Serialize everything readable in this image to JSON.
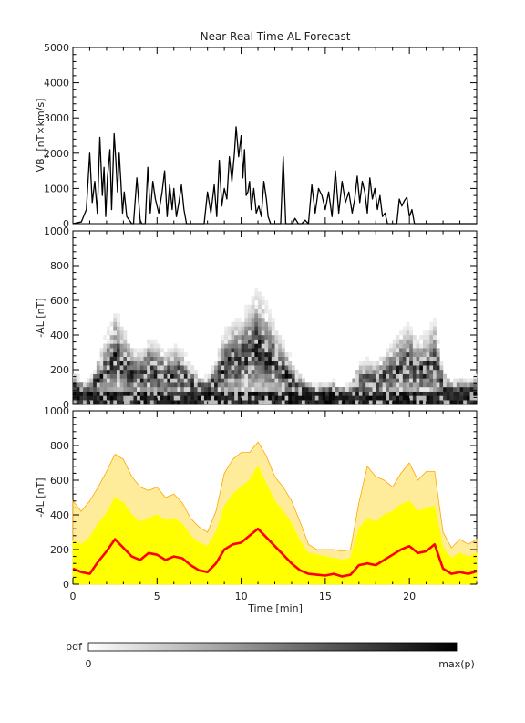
{
  "title": "Near Real Time AL Forecast",
  "x_axis": {
    "label": "Time [min]",
    "range": [
      0,
      24
    ],
    "major_ticks": [
      0,
      5,
      10,
      15,
      20
    ],
    "minor_step": 1
  },
  "colorbar": {
    "label": "pdf",
    "min_label": "0",
    "max_label": "max(p)"
  },
  "chart_data": [
    {
      "type": "line",
      "name": "vbs-panel",
      "ylabel": "VBs [nT×km/s]",
      "ylabel_main": "VB",
      "ylabel_sub": "s",
      "ylabel_rest": " [nT×km/s]",
      "xlim": [
        0,
        24
      ],
      "ylim": [
        0,
        5000
      ],
      "yticks": [
        0,
        1000,
        2000,
        3000,
        4000,
        5000
      ],
      "series": [
        {
          "x": [
            0,
            0.5,
            0.8,
            1.0,
            1.15,
            1.3,
            1.45,
            1.6,
            1.75,
            1.85,
            1.95,
            2.05,
            2.2,
            2.3,
            2.45,
            2.55,
            2.65,
            2.75,
            2.85,
            2.95,
            3.05,
            3.2,
            3.35,
            3.5,
            3.6,
            3.8,
            4.0,
            4.1,
            4.3,
            4.45,
            4.6,
            4.75,
            4.9,
            5.1,
            5.3,
            5.45,
            5.6,
            5.75,
            5.9,
            6.0,
            6.15,
            6.3,
            6.45,
            6.6,
            6.75,
            6.9,
            7.05,
            7.2,
            7.4,
            7.6,
            7.8,
            8.0,
            8.2,
            8.4,
            8.55,
            8.7,
            8.85,
            9.0,
            9.15,
            9.3,
            9.45,
            9.6,
            9.7,
            9.85,
            10.0,
            10.1,
            10.2,
            10.3,
            10.4,
            10.5,
            10.6,
            10.75,
            10.9,
            11.05,
            11.2,
            11.35,
            11.5,
            11.6,
            11.75,
            11.9,
            12.05,
            12.2,
            12.35,
            12.5,
            12.65,
            12.8,
            12.9,
            13.05,
            13.2,
            13.4,
            13.6,
            13.8,
            14.0,
            14.2,
            14.4,
            14.6,
            14.8,
            15.0,
            15.2,
            15.4,
            15.6,
            15.8,
            16.0,
            16.2,
            16.4,
            16.6,
            16.75,
            16.9,
            17.05,
            17.2,
            17.35,
            17.5,
            17.65,
            17.8,
            17.95,
            18.1,
            18.25,
            18.4,
            18.55,
            18.7,
            18.85,
            19.0,
            19.1,
            19.25,
            19.4,
            19.55,
            19.7,
            19.85,
            20.0,
            20.15,
            20.3,
            20.45,
            20.6,
            20.75,
            20.9,
            21.05,
            21.2,
            21.35,
            21.5,
            21.65,
            21.8,
            22.0,
            22.2,
            22.4,
            22.6,
            22.8,
            23.0,
            23.2,
            23.4,
            23.6,
            23.8,
            24.0
          ],
          "y": [
            0,
            50,
            400,
            2000,
            600,
            1200,
            300,
            2450,
            800,
            1600,
            200,
            1300,
            2100,
            400,
            2550,
            1800,
            900,
            2000,
            1200,
            300,
            900,
            200,
            100,
            0,
            0,
            1300,
            100,
            0,
            0,
            1600,
            300,
            1200,
            700,
            300,
            900,
            1500,
            200,
            1100,
            400,
            1000,
            200,
            600,
            1100,
            400,
            0,
            0,
            0,
            0,
            0,
            0,
            0,
            900,
            300,
            1100,
            200,
            1800,
            500,
            1000,
            700,
            1900,
            1200,
            2000,
            2750,
            1900,
            2500,
            1300,
            2100,
            800,
            900,
            1200,
            400,
            1000,
            300,
            500,
            200,
            1200,
            700,
            200,
            0,
            0,
            0,
            0,
            0,
            1900,
            0,
            0,
            0,
            0,
            150,
            0,
            0,
            100,
            0,
            1100,
            300,
            1000,
            800,
            400,
            900,
            200,
            1500,
            300,
            1200,
            600,
            900,
            300,
            700,
            1350,
            600,
            1200,
            900,
            300,
            1300,
            700,
            1000,
            400,
            800,
            200,
            300,
            0,
            0,
            0,
            0,
            0,
            700,
            500,
            650,
            750,
            200,
            400,
            0,
            0,
            0,
            0,
            0,
            0,
            0,
            0,
            0,
            0,
            0,
            0,
            0,
            0,
            0,
            0,
            0,
            0,
            0,
            0,
            0,
            0
          ]
        }
      ]
    },
    {
      "type": "heatmap",
      "name": "al-pdf-panel",
      "ylabel": "-AL [nT]",
      "xlim": [
        0,
        24
      ],
      "ylim": [
        0,
        1000
      ],
      "yticks": [
        0,
        200,
        400,
        600,
        800,
        1000
      ],
      "x_bin": 0.2,
      "y_bin": 25,
      "colorscale": [
        "#ffffff",
        "#000000"
      ]
    },
    {
      "type": "area",
      "name": "al-forecast-panel",
      "ylabel": "-AL [nT]",
      "xlim": [
        0,
        24
      ],
      "ylim": [
        0,
        1000
      ],
      "yticks": [
        0,
        200,
        400,
        600,
        800,
        1000
      ],
      "x": [
        0,
        0.5,
        1.0,
        1.5,
        2.0,
        2.5,
        3.0,
        3.5,
        4.0,
        4.5,
        5.0,
        5.5,
        6.0,
        6.5,
        7.0,
        7.5,
        8.0,
        8.5,
        9.0,
        9.5,
        10.0,
        10.5,
        11.0,
        11.5,
        12.0,
        12.5,
        13.0,
        13.5,
        14.0,
        14.5,
        15.0,
        15.5,
        16.0,
        16.5,
        17.0,
        17.5,
        18.0,
        18.5,
        19.0,
        19.5,
        20.0,
        20.5,
        21.0,
        21.5,
        22.0,
        22.5,
        23.0,
        23.5,
        24.0
      ],
      "series": [
        {
          "name": "median",
          "color": "#ff0000",
          "values": [
            90,
            70,
            60,
            130,
            190,
            260,
            210,
            160,
            140,
            180,
            170,
            140,
            160,
            150,
            110,
            80,
            70,
            120,
            200,
            230,
            240,
            280,
            320,
            270,
            220,
            170,
            120,
            80,
            60,
            55,
            50,
            60,
            45,
            55,
            110,
            120,
            110,
            140,
            170,
            200,
            220,
            180,
            190,
            230,
            90,
            60,
            70,
            60,
            75
          ]
        },
        {
          "name": "band-50",
          "color": "#ffff00",
          "values": [
            250,
            230,
            270,
            350,
            410,
            500,
            470,
            400,
            360,
            380,
            400,
            370,
            380,
            350,
            280,
            240,
            220,
            300,
            450,
            520,
            560,
            600,
            680,
            580,
            480,
            420,
            350,
            250,
            180,
            170,
            160,
            150,
            140,
            150,
            320,
            380,
            360,
            400,
            420,
            460,
            480,
            420,
            440,
            450,
            210,
            150,
            180,
            160,
            180
          ]
        },
        {
          "name": "band-90",
          "color": "#ffa500",
          "values": [
            480,
            420,
            480,
            560,
            650,
            750,
            720,
            620,
            560,
            540,
            560,
            500,
            520,
            470,
            380,
            330,
            300,
            420,
            640,
            720,
            760,
            760,
            820,
            740,
            620,
            560,
            480,
            360,
            230,
            200,
            200,
            200,
            190,
            200,
            470,
            680,
            620,
            600,
            560,
            640,
            700,
            600,
            650,
            650,
            300,
            210,
            260,
            230,
            260
          ]
        }
      ]
    }
  ]
}
